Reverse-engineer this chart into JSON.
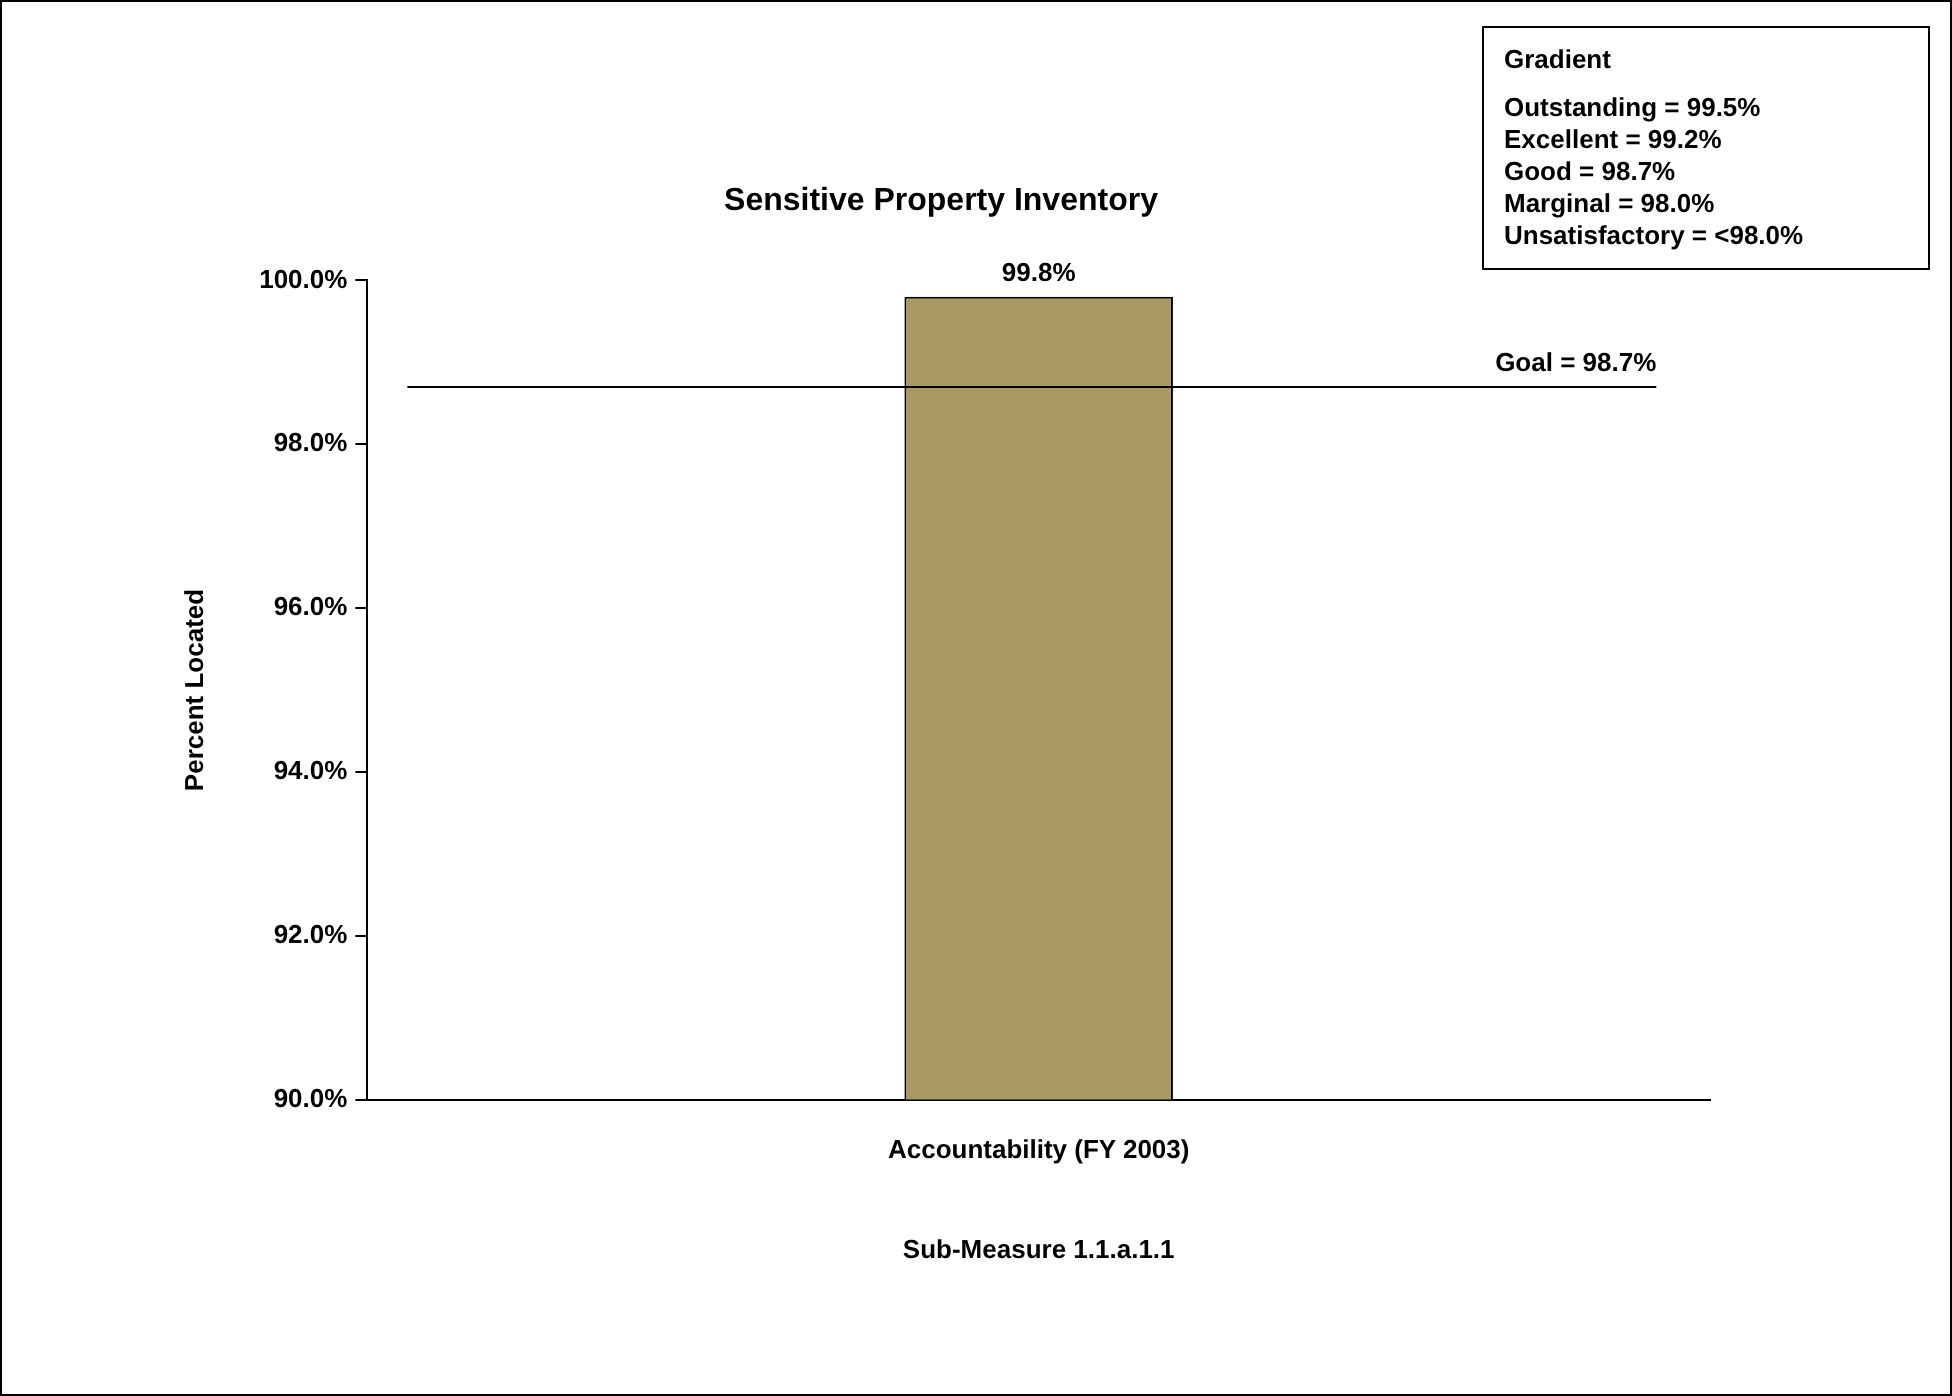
{
  "chart_data": {
    "type": "bar",
    "title": "Sensitive Property Inventory",
    "xlabel": "Sub-Measure 1.1.a.1.1",
    "ylabel": "Percent Located",
    "categories": [
      "Accountability (FY 2003)"
    ],
    "values": [
      99.8
    ],
    "value_labels": [
      "99.8%"
    ],
    "color": "#a89a62",
    "ylim": [
      90,
      100
    ],
    "yticks": [
      {
        "value": 90,
        "label": "90.0%"
      },
      {
        "value": 92,
        "label": "92.0%"
      },
      {
        "value": 94,
        "label": "94.0%"
      },
      {
        "value": 96,
        "label": "96.0%"
      },
      {
        "value": 98,
        "label": "98.0%"
      },
      {
        "value": 100,
        "label": "100.0%"
      }
    ],
    "ref_lines": [
      {
        "axis": "y",
        "value": 98.7,
        "label": "Goal = 98.7%",
        "color": "#000000"
      }
    ],
    "annotations": [
      "Gradient",
      "Outstanding = 99.5%",
      "Excellent = 99.2%",
      "Good = 98.7%",
      "Marginal = 98.0%",
      "Unsatisfactory = <98.0%"
    ]
  }
}
